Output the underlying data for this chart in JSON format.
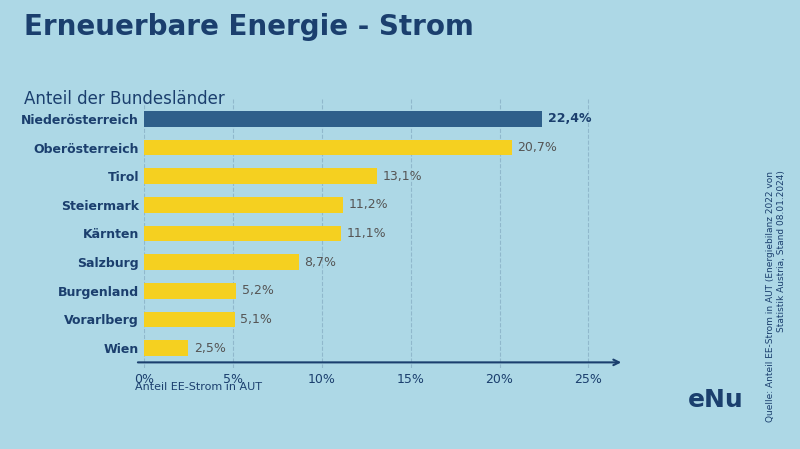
{
  "title": "Erneuerbare Energie - Strom",
  "subtitle": "Anteil der Bundesländer",
  "xlabel": "Anteil EE-Strom in AUT",
  "source_text": "Quelle: Anteil EE-Strom in AUT (Energiebilanz 2022 von\nStatistik Austria, Stand 08.01.2024)",
  "categories": [
    "Niederösterreich",
    "Oberösterreich",
    "Tirol",
    "Steiermark",
    "Kärnten",
    "Salzburg",
    "Burgenland",
    "Vorarlberg",
    "Wien"
  ],
  "values": [
    22.4,
    20.7,
    13.1,
    11.2,
    11.1,
    8.7,
    5.2,
    5.1,
    2.5
  ],
  "labels": [
    "22,4%",
    "20,7%",
    "13,1%",
    "11,2%",
    "11,1%",
    "8,7%",
    "5,2%",
    "5,1%",
    "2,5%"
  ],
  "bar_colors": [
    "#2E5F8A",
    "#F5D020",
    "#F5D020",
    "#F5D020",
    "#F5D020",
    "#F5D020",
    "#F5D020",
    "#F5D020",
    "#F5D020"
  ],
  "background_color": "#ADD8E6",
  "title_color": "#1B3F6E",
  "subtitle_color": "#1B3F6E",
  "label_color_first": "#1B3F6E",
  "label_color_rest": "#555555",
  "bar_label_color_first": "#1B3F6E",
  "bar_label_color_rest": "#555555",
  "xlim": [
    0,
    27
  ],
  "xticks": [
    0,
    5,
    10,
    15,
    20,
    25
  ],
  "xtick_labels": [
    "0%",
    "5%",
    "10%",
    "15%",
    "20%",
    "25%"
  ],
  "grid_color": "#90B8CC",
  "dark_blue": "#1B3F6E",
  "yellow": "#F5D020"
}
